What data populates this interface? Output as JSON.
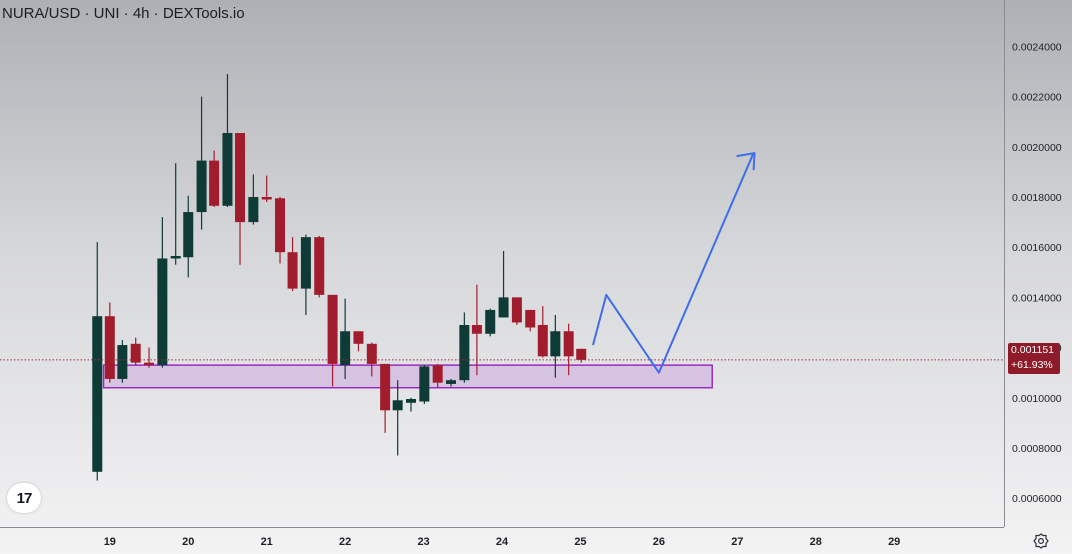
{
  "header": {
    "title": "NURA/USD · UNI · 4h · DEXTools.io"
  },
  "price_tag": {
    "price": "0.001151",
    "change": "+61.93%"
  },
  "logo": {
    "text": "17",
    "icon": "tradingview-logo-icon"
  },
  "settings": {
    "icon": "gear-icon"
  },
  "colors": {
    "up": "#0e3b36",
    "down": "#a11d2d",
    "zone_fill": "#d4bde1",
    "zone_stroke": "#9a2bbf",
    "projection": "#3f6ee8",
    "price_line": "#9a2e3a"
  },
  "chart_data": {
    "type": "candlestick",
    "y_ticks": [
      "0.0006000",
      "0.0008000",
      "0.0010000",
      "0.0012000",
      "0.0014000",
      "0.0016000",
      "0.0018000",
      "0.0020000",
      "0.0022000",
      "0.0024000"
    ],
    "y_tick_values": [
      0.0006,
      0.0008,
      0.001,
      0.0012,
      0.0014,
      0.0016,
      0.0018,
      0.002,
      0.0022,
      0.0024
    ],
    "x_ticks": [
      "19",
      "20",
      "21",
      "22",
      "23",
      "24",
      "25",
      "26",
      "27",
      "28",
      "29"
    ],
    "x_tick_values": [
      19,
      20,
      21,
      22,
      23,
      24,
      25,
      26,
      27,
      28,
      29
    ],
    "xlim": [
      17.6,
      30.4
    ],
    "ylim": [
      0.000485,
      0.002585
    ],
    "candles": [
      {
        "t": 18.84,
        "o": 0.000705,
        "h": 0.00162,
        "l": 0.00067,
        "c": 0.001325
      },
      {
        "t": 19.0,
        "o": 0.001325,
        "h": 0.00138,
        "l": 0.00106,
        "c": 0.001075
      },
      {
        "t": 19.16,
        "o": 0.001075,
        "h": 0.00123,
        "l": 0.00106,
        "c": 0.00121
      },
      {
        "t": 19.33,
        "o": 0.001215,
        "h": 0.00124,
        "l": 0.00113,
        "c": 0.00114
      },
      {
        "t": 19.5,
        "o": 0.00114,
        "h": 0.0012,
        "l": 0.00112,
        "c": 0.00113
      },
      {
        "t": 19.67,
        "o": 0.00113,
        "h": 0.00172,
        "l": 0.00112,
        "c": 0.001555
      },
      {
        "t": 19.84,
        "o": 0.001555,
        "h": 0.001935,
        "l": 0.00153,
        "c": 0.001565
      },
      {
        "t": 20.0,
        "o": 0.00156,
        "h": 0.001805,
        "l": 0.00148,
        "c": 0.00174
      },
      {
        "t": 20.17,
        "o": 0.00174,
        "h": 0.0022,
        "l": 0.00167,
        "c": 0.001945
      },
      {
        "t": 20.33,
        "o": 0.001945,
        "h": 0.001985,
        "l": 0.00176,
        "c": 0.001765
      },
      {
        "t": 20.5,
        "o": 0.001765,
        "h": 0.00229,
        "l": 0.00176,
        "c": 0.002055
      },
      {
        "t": 20.66,
        "o": 0.002055,
        "h": 0.002055,
        "l": 0.00153,
        "c": 0.0017
      },
      {
        "t": 20.83,
        "o": 0.0017,
        "h": 0.00189,
        "l": 0.00169,
        "c": 0.0018
      },
      {
        "t": 21.0,
        "o": 0.0018,
        "h": 0.001885,
        "l": 0.00178,
        "c": 0.00179
      },
      {
        "t": 21.17,
        "o": 0.001795,
        "h": 0.0018,
        "l": 0.001535,
        "c": 0.00158
      },
      {
        "t": 21.33,
        "o": 0.00158,
        "h": 0.00164,
        "l": 0.001425,
        "c": 0.001435
      },
      {
        "t": 21.5,
        "o": 0.001435,
        "h": 0.00165,
        "l": 0.00133,
        "c": 0.00164
      },
      {
        "t": 21.67,
        "o": 0.00164,
        "h": 0.001645,
        "l": 0.0014,
        "c": 0.00141
      },
      {
        "t": 21.84,
        "o": 0.00141,
        "h": 0.00141,
        "l": 0.001045,
        "c": 0.001135
      },
      {
        "t": 22.0,
        "o": 0.00113,
        "h": 0.001395,
        "l": 0.001075,
        "c": 0.001265
      },
      {
        "t": 22.17,
        "o": 0.001265,
        "h": 0.001265,
        "l": 0.001185,
        "c": 0.001215
      },
      {
        "t": 22.34,
        "o": 0.001215,
        "h": 0.00122,
        "l": 0.001085,
        "c": 0.001135
      },
      {
        "t": 22.51,
        "o": 0.001135,
        "h": 0.001135,
        "l": 0.00086,
        "c": 0.00095
      },
      {
        "t": 22.67,
        "o": 0.00095,
        "h": 0.00107,
        "l": 0.00077,
        "c": 0.00099
      },
      {
        "t": 22.84,
        "o": 0.00098,
        "h": 0.001,
        "l": 0.000945,
        "c": 0.000995
      },
      {
        "t": 23.01,
        "o": 0.000985,
        "h": 0.00113,
        "l": 0.000975,
        "c": 0.001125
      },
      {
        "t": 23.18,
        "o": 0.00113,
        "h": 0.001135,
        "l": 0.00104,
        "c": 0.00106
      },
      {
        "t": 23.35,
        "o": 0.001055,
        "h": 0.001075,
        "l": 0.001045,
        "c": 0.00107
      },
      {
        "t": 23.52,
        "o": 0.00107,
        "h": 0.00134,
        "l": 0.00106,
        "c": 0.00129
      },
      {
        "t": 23.68,
        "o": 0.00129,
        "h": 0.00145,
        "l": 0.00109,
        "c": 0.001255
      },
      {
        "t": 23.85,
        "o": 0.001255,
        "h": 0.001355,
        "l": 0.001245,
        "c": 0.00135
      },
      {
        "t": 24.02,
        "o": 0.00132,
        "h": 0.001585,
        "l": 0.00132,
        "c": 0.0014
      },
      {
        "t": 24.19,
        "o": 0.0014,
        "h": 0.0014,
        "l": 0.00129,
        "c": 0.0013
      },
      {
        "t": 24.36,
        "o": 0.00135,
        "h": 0.00135,
        "l": 0.001265,
        "c": 0.00128
      },
      {
        "t": 24.52,
        "o": 0.00129,
        "h": 0.001365,
        "l": 0.00116,
        "c": 0.001165
      },
      {
        "t": 24.68,
        "o": 0.001165,
        "h": 0.00133,
        "l": 0.00108,
        "c": 0.001265
      },
      {
        "t": 24.85,
        "o": 0.001265,
        "h": 0.001295,
        "l": 0.00109,
        "c": 0.001165
      },
      {
        "t": 25.01,
        "o": 0.001195,
        "h": 0.001195,
        "l": 0.00114,
        "c": 0.001151
      }
    ],
    "support_zone": {
      "x0": 18.92,
      "x1": 26.68,
      "y_low": 0.00104,
      "y_high": 0.00113
    },
    "projection_path": [
      {
        "x": 25.16,
        "y": 0.00121
      },
      {
        "x": 25.33,
        "y": 0.00141
      },
      {
        "x": 26.0,
        "y": 0.0011
      },
      {
        "x": 27.2,
        "y": 0.00197
      }
    ],
    "projection_arrow_tip": {
      "x": 27.22,
      "y": 0.001975
    },
    "last_price": 0.001151,
    "grid": false,
    "legend": "none"
  }
}
